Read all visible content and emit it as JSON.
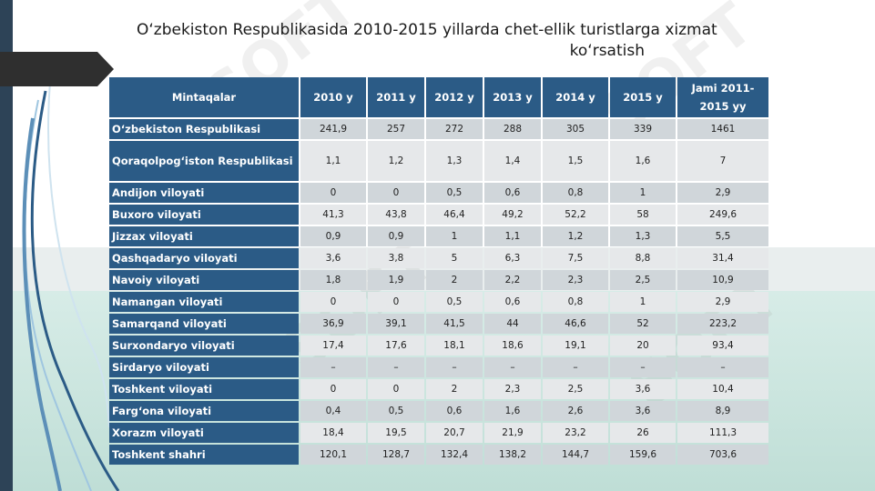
{
  "slide": {
    "title_line1": "O‘zbekiston Respublikasida 2010-2015 yillarda chet-ellik turistlarga xizmat",
    "title_line2": "ko‘rsatish"
  },
  "table": {
    "headers": [
      "Mintaqalar",
      "2010 y",
      "2011 y",
      "2012 y",
      "2013 y",
      "2014 y",
      "2015 y",
      "Jami 2011-2015 yy"
    ],
    "rows": [
      {
        "region": "O‘zbekiston Respublikasi",
        "values": [
          "241,9",
          "257",
          "272",
          "288",
          "305",
          "339",
          "1461"
        ]
      },
      {
        "region": "Qoraqolpog‘iston Respublikasi",
        "values": [
          "1,1",
          "1,2",
          "1,3",
          "1,4",
          "1,5",
          "1,6",
          "7"
        ]
      },
      {
        "region": "Andijon viloyati",
        "values": [
          "0",
          "0",
          "0,5",
          "0,6",
          "0,8",
          "1",
          "2,9"
        ]
      },
      {
        "region": "Buxoro viloyati",
        "values": [
          "41,3",
          "43,8",
          "46,4",
          "49,2",
          "52,2",
          "58",
          "249,6"
        ]
      },
      {
        "region": "Jizzax viloyati",
        "values": [
          "0,9",
          "0,9",
          "1",
          "1,1",
          "1,2",
          "1,3",
          "5,5"
        ]
      },
      {
        "region": "Qashqadaryo viloyati",
        "values": [
          "3,6",
          "3,8",
          "5",
          "6,3",
          "7,5",
          "8,8",
          "31,4"
        ]
      },
      {
        "region": "Navoiy viloyati",
        "values": [
          "1,8",
          "1,9",
          "2",
          "2,2",
          "2,3",
          "2,5",
          "10,9"
        ]
      },
      {
        "region": "Namangan viloyati",
        "values": [
          "0",
          "0",
          "0,5",
          "0,6",
          "0,8",
          "1",
          "2,9"
        ]
      },
      {
        "region": "Samarqand viloyati",
        "values": [
          "36,9",
          "39,1",
          "41,5",
          "44",
          "46,6",
          "52",
          "223,2"
        ]
      },
      {
        "region": "Surxondaryo viloyati",
        "values": [
          "17,4",
          "17,6",
          "18,1",
          "18,6",
          "19,1",
          "20",
          "93,4"
        ]
      },
      {
        "region": "Sirdaryo viloyati",
        "values": [
          "–",
          "–",
          "–",
          "–",
          "–",
          "–",
          "–"
        ]
      },
      {
        "region": "Toshkent viloyati",
        "values": [
          "0",
          "0",
          "2",
          "2,3",
          "2,5",
          "3,6",
          "10,4"
        ]
      },
      {
        "region": "Farg‘ona viloyati",
        "values": [
          "0,4",
          "0,5",
          "0,6",
          "1,6",
          "2,6",
          "3,6",
          "8,9"
        ]
      },
      {
        "region": "Xorazm viloyati",
        "values": [
          "18,4",
          "19,5",
          "20,7",
          "21,9",
          "23,2",
          "26",
          "111,3"
        ]
      },
      {
        "region": "Toshkent shahri",
        "values": [
          "120,1",
          "128,7",
          "132,4",
          "138,2",
          "144,7",
          "159,6",
          "703,6"
        ]
      }
    ]
  },
  "watermark_text": "SOFT",
  "colors": {
    "header_blue": "#2b5b86",
    "left_bar": "#2d4357",
    "cell_dark": "#d0d6da",
    "cell_light": "#e6e8ea"
  }
}
